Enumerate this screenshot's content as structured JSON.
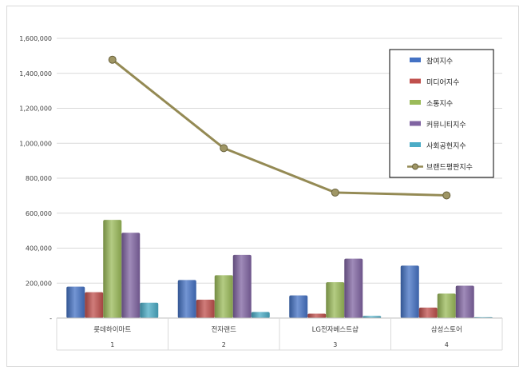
{
  "chart_data": {
    "type": "bar",
    "categories": [
      "롯데하이마트",
      "전자랜드",
      "LG전자베스트샵",
      "삼성스토어"
    ],
    "rank_labels": [
      "1",
      "2",
      "3",
      "4"
    ],
    "ylim": [
      0,
      1600000
    ],
    "yticks": [
      0,
      200000,
      400000,
      600000,
      800000,
      1000000,
      1200000,
      1400000,
      1600000
    ],
    "ytick_labels": [
      "-",
      "200,000",
      "400,000",
      "600,000",
      "800,000",
      "1,000,000",
      "1,200,000",
      "1,400,000",
      "1,600,000"
    ],
    "grid": true,
    "legend_position": "top-right",
    "series": [
      {
        "name": "참여지수",
        "type": "bar",
        "color": "#4472c4",
        "values": [
          180000,
          218000,
          130000,
          300000
        ]
      },
      {
        "name": "미디어지수",
        "type": "bar",
        "color": "#c0504d",
        "values": [
          148000,
          105000,
          25000,
          60000
        ]
      },
      {
        "name": "소통지수",
        "type": "bar",
        "color": "#9bbb59",
        "values": [
          562000,
          245000,
          205000,
          140000
        ]
      },
      {
        "name": "커뮤니티지수",
        "type": "bar",
        "color": "#8064a2",
        "values": [
          488000,
          362000,
          340000,
          185000
        ]
      },
      {
        "name": "사회공헌지수",
        "type": "bar",
        "color": "#4bacc6",
        "values": [
          88000,
          35000,
          12000,
          5000
        ]
      },
      {
        "name": "브랜드평판지수",
        "type": "line",
        "color": "#948a54",
        "values": [
          1478000,
          972000,
          718000,
          702000
        ]
      }
    ]
  }
}
